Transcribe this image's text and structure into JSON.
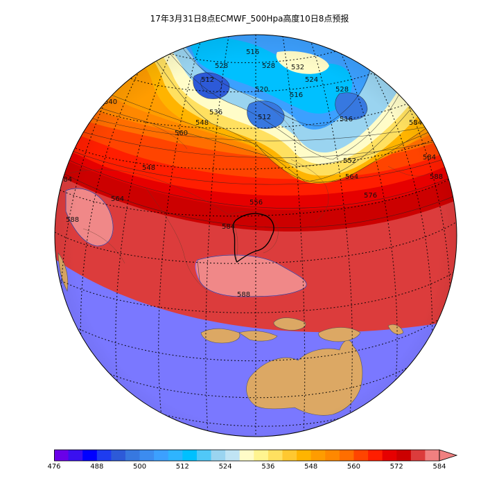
{
  "title": "17年3月31日8点ECMWF_500Hpa高度10日8点预报",
  "colorbar": {
    "ticks": [
      "476",
      "488",
      "500",
      "512",
      "524",
      "536",
      "548",
      "560",
      "572",
      "584"
    ],
    "colors": [
      "#6a00e8",
      "#3a10f0",
      "#0000ff",
      "#1e3cf0",
      "#2d5ad8",
      "#3778e0",
      "#3c8cf0",
      "#3ca0ff",
      "#2eb4ff",
      "#00c0ff",
      "#50c8f8",
      "#9ad4f0",
      "#c0e4f4",
      "#fffcc8",
      "#fff490",
      "#ffe060",
      "#ffc830",
      "#ffb400",
      "#ff9c00",
      "#ff8800",
      "#ff6e00",
      "#ff4400",
      "#ff1e00",
      "#e60000",
      "#cc0000",
      "#dc3c3c",
      "#f08080"
    ],
    "extend": "max"
  },
  "contour_labels": [
    "540",
    "516",
    "528",
    "512",
    "528",
    "532",
    "524",
    "520",
    "516",
    "536",
    "528",
    "512",
    "516",
    "548",
    "540",
    "560",
    "548",
    "564",
    "552",
    "556",
    "564",
    "576",
    "584",
    "588",
    "584",
    "588",
    "584",
    "588",
    "564",
    "584"
  ],
  "palette": {
    "ocean": "#7a78ff",
    "land": "#dca864",
    "tropical_band": "#dc3c3c",
    "subtropic_high": "#f08888",
    "contour": "#222222",
    "graticule": "#000000"
  }
}
